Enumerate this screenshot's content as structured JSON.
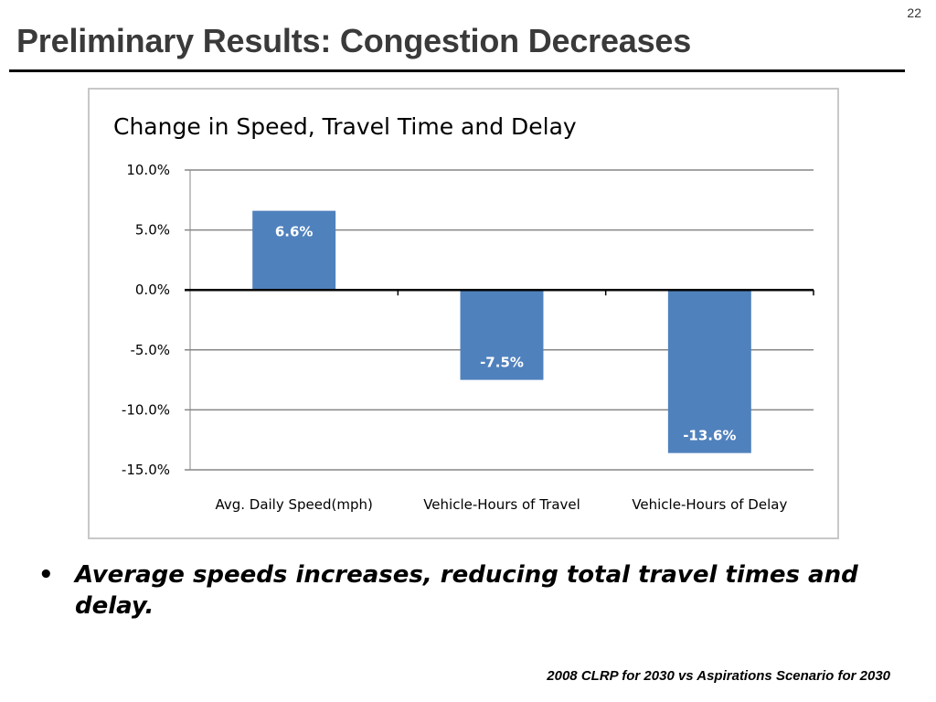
{
  "slide": {
    "number": "22",
    "title": "Preliminary Results: Congestion Decreases",
    "bullet": "Average speeds increases, reducing total travel times and delay.",
    "footer": "2008 CLRP for 2030 vs Aspirations Scenario for 2030"
  },
  "colors": {
    "bar": "#4f81bd",
    "gridline": "#868686",
    "zero_line": "#000000"
  },
  "chart_data": {
    "type": "bar",
    "title": "Change in Speed, Travel Time and Delay",
    "categories": [
      "Avg. Daily Speed(mph)",
      "Vehicle-Hours of Travel",
      "Vehicle-Hours of Delay"
    ],
    "values": [
      6.6,
      -7.5,
      -13.6
    ],
    "data_labels": [
      "6.6%",
      "-7.5%",
      "-13.6%"
    ],
    "ylim": [
      -15,
      10
    ],
    "yticks": [
      10,
      5,
      0,
      -5,
      -10,
      -15
    ],
    "ytick_labels": [
      "10.0%",
      "5.0%",
      "0.0%",
      "-5.0%",
      "-10.0%",
      "-15.0%"
    ],
    "grid": true,
    "legend": "none"
  }
}
